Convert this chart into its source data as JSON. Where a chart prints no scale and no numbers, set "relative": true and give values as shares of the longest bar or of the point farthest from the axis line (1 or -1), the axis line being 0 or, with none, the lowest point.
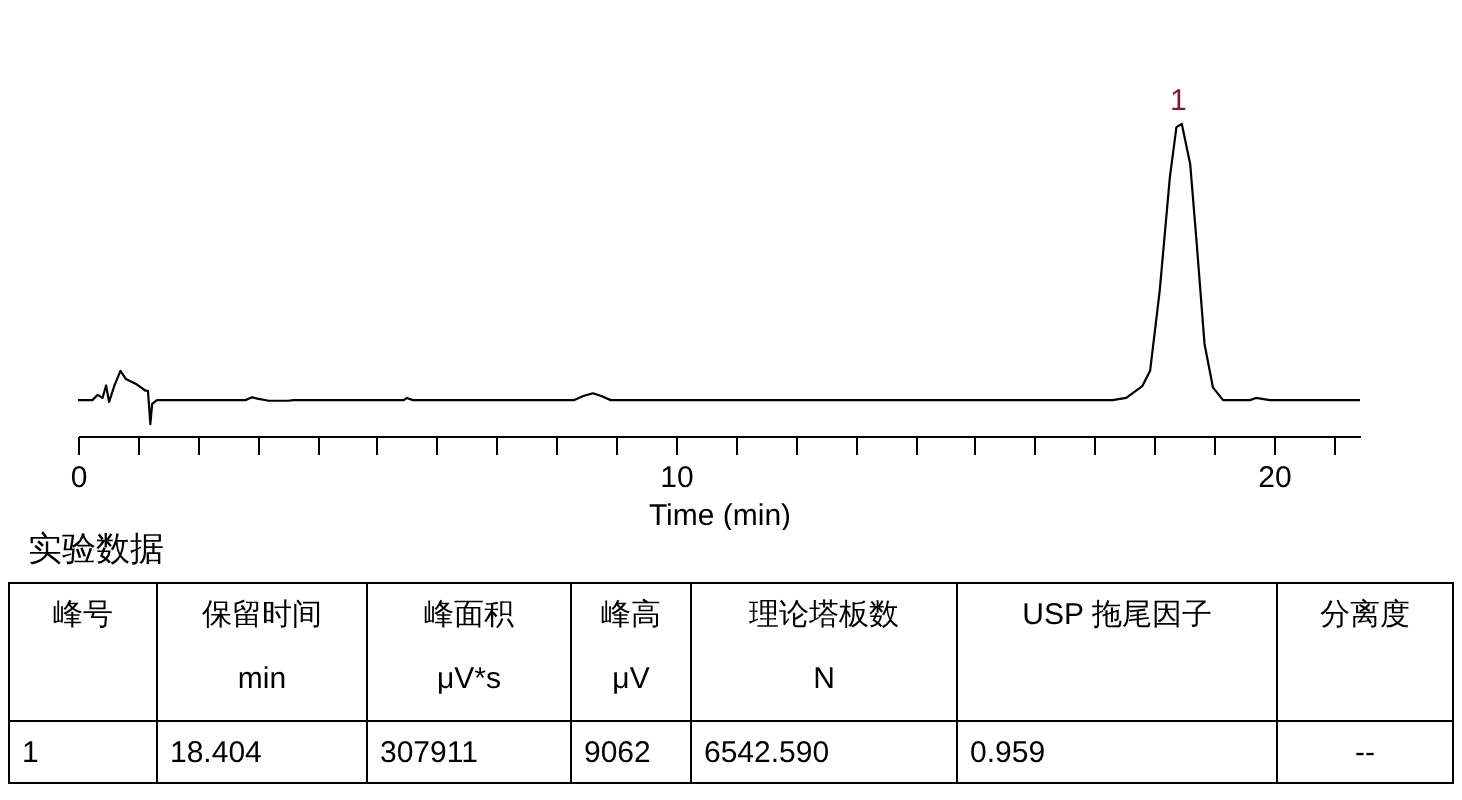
{
  "chart_data": {
    "type": "line",
    "relative": true,
    "xlabel": "Time (min)",
    "xlim": [
      0,
      21.44
    ],
    "xticks": [
      0,
      {
        "value": 1,
        "label": null
      },
      {
        "value": 2,
        "label": null
      },
      {
        "value": 3,
        "label": null
      },
      {
        "value": 4,
        "label": null
      },
      {
        "value": 5,
        "label": null
      },
      {
        "value": 6,
        "label": null
      },
      {
        "value": 7,
        "label": null
      },
      {
        "value": 8,
        "label": null
      },
      {
        "value": 9,
        "label": null
      },
      10,
      {
        "value": 11,
        "label": null
      },
      {
        "value": 12,
        "label": null
      },
      {
        "value": 13,
        "label": null
      },
      {
        "value": 14,
        "label": null
      },
      {
        "value": 15,
        "label": null
      },
      {
        "value": 16,
        "label": null
      },
      {
        "value": 17,
        "label": null
      },
      {
        "value": 18,
        "label": null
      },
      {
        "value": 19,
        "label": null
      },
      20,
      {
        "value": 21,
        "label": null
      }
    ],
    "series": [
      {
        "color": "#000000",
        "x": [
          0,
          0.24,
          0.33,
          0.41,
          0.47,
          0.52,
          0.61,
          0.71,
          0.8,
          0.97,
          1.13,
          1.17,
          1.21,
          1.24,
          1.32,
          1.43,
          2.8,
          2.91,
          3.0,
          3.19,
          3.52,
          3.6,
          5.45,
          5.5,
          5.6,
          8.3,
          8.45,
          8.61,
          8.75,
          8.91,
          17.3,
          17.53,
          17.8,
          17.93,
          18.09,
          18.26,
          18.37,
          18.46,
          18.6,
          18.71,
          18.84,
          18.98,
          19.15,
          19.6,
          19.7,
          19.93,
          21.44
        ],
        "values": [
          0.115,
          0.115,
          0.132,
          0.122,
          0.162,
          0.109,
          0.162,
          0.209,
          0.183,
          0.167,
          0.145,
          0.145,
          0.038,
          0.103,
          0.115,
          0.115,
          0.115,
          0.124,
          0.12,
          0.113,
          0.113,
          0.115,
          0.115,
          0.122,
          0.115,
          0.115,
          0.128,
          0.137,
          0.128,
          0.115,
          0.115,
          0.122,
          0.16,
          0.209,
          0.465,
          0.829,
          0.99,
          1.0,
          0.872,
          0.615,
          0.295,
          0.156,
          0.115,
          0.115,
          0.122,
          0.115,
          0.115
        ]
      }
    ],
    "annotations": [
      {
        "text": "1",
        "x": 18.404,
        "y": 1.0
      },
      "实验数据",
      "峰号",
      "保留时间",
      "峰面积",
      "峰高",
      "理论塔板数",
      "USP 拖尾因子",
      "分离度",
      "min",
      "μV*s",
      "μV",
      "N",
      "1",
      "18.404",
      "307911",
      "9062",
      "6542.590",
      "0.959",
      "--"
    ]
  }
}
